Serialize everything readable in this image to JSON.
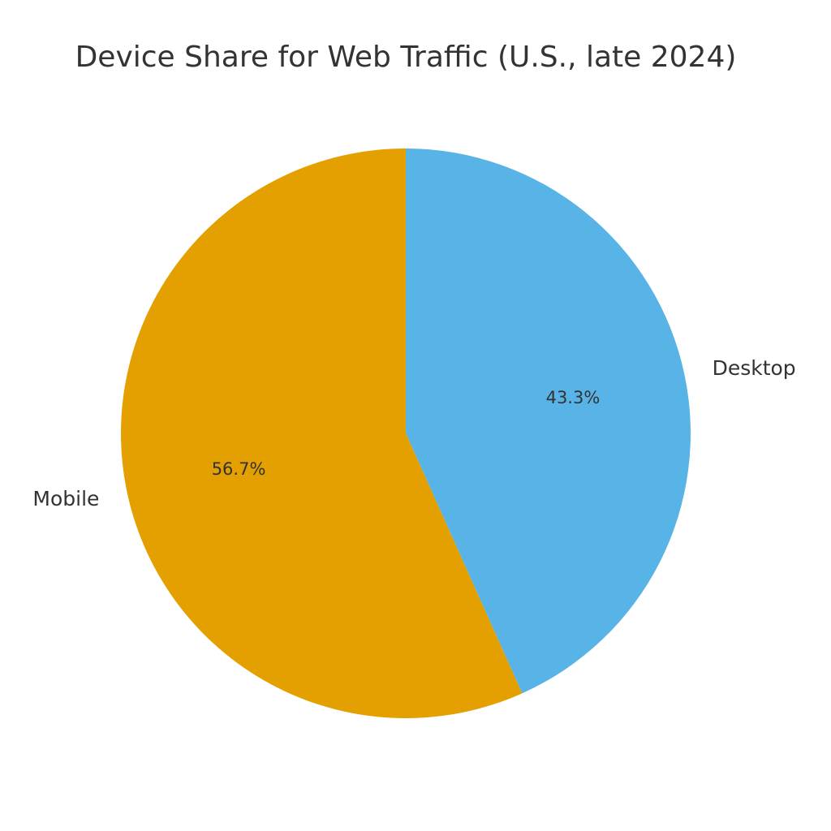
{
  "chart_data": {
    "type": "pie",
    "title": "Device Share for Web Traffic (U.S., late 2024)",
    "start_angle_deg": 90,
    "direction": "clockwise",
    "slices": [
      {
        "label": "Desktop",
        "value": 43.3,
        "pct_label": "43.3%",
        "color": "#58B3E6"
      },
      {
        "label": "Mobile",
        "value": 56.7,
        "pct_label": "56.7%",
        "color": "#E3A000"
      }
    ],
    "legend": "none"
  }
}
